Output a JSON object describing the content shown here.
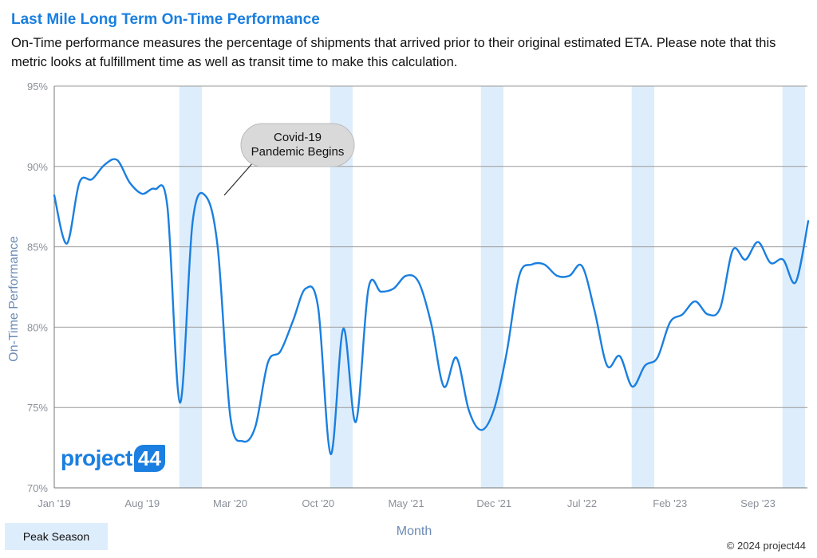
{
  "header": {
    "title": "Last Mile Long Term On-Time Performance",
    "subtitle": "On-Time performance measures the percentage of shipments that arrived prior to their original estimated ETA. Please note that this metric looks at fulfillment time as well as transit time to make this calculation."
  },
  "logo": {
    "word": "project",
    "badge": "44"
  },
  "legend": {
    "label": "Peak Season"
  },
  "copyright": "© 2024 project44",
  "annotation": {
    "line1": "Covid-19",
    "line2": "Pandemic Begins"
  },
  "colors": {
    "line": "#1a7fe0",
    "peak": "#deedfb",
    "axis_text": "#8a9099",
    "ylabel": "#6b8bb5",
    "grid": "#999999"
  },
  "chart_data": {
    "type": "line",
    "title": "Last Mile Long Term On-Time Performance",
    "xlabel": "Month",
    "ylabel": "On-Time Performance",
    "ylim": [
      70,
      95
    ],
    "y_ticks": [
      "70%",
      "75%",
      "80%",
      "85%",
      "90%",
      "95%"
    ],
    "x_ticks": [
      "Jan '19",
      "Aug '19",
      "Mar '20",
      "Oct '20",
      "May '21",
      "Dec '21",
      "Jul '22",
      "Feb '23",
      "Sep '23"
    ],
    "x_start": "Jan '19",
    "grid": true,
    "peak_season_ranges": [
      [
        "Nov '19",
        "Dec '19"
      ],
      [
        "Nov '20",
        "Dec '20"
      ],
      [
        "Nov '21",
        "Dec '21"
      ],
      [
        "Nov '22",
        "Dec '22"
      ],
      [
        "Nov '23",
        "Dec '23"
      ]
    ],
    "series": [
      {
        "values": [
          88.2,
          85.2,
          89.0,
          89.2,
          90.1,
          90.4,
          89.0,
          88.3,
          88.6,
          87.5,
          75.3,
          86.5,
          88.2,
          85.0,
          74.5,
          72.9,
          73.8,
          77.8,
          78.5,
          80.4,
          82.4,
          81.2,
          72.1,
          79.9,
          74.1,
          82.4,
          82.2,
          82.4,
          83.2,
          82.8,
          80.2,
          76.3,
          78.1,
          74.8,
          73.6,
          74.9,
          78.4,
          83.2,
          83.9,
          83.9,
          83.2,
          83.2,
          83.8,
          81.0,
          77.6,
          78.2,
          76.3,
          77.6,
          78.1,
          80.3,
          80.8,
          81.6,
          80.8,
          81.2,
          84.8,
          84.2,
          85.3,
          84.0,
          84.2,
          82.8,
          86.6
        ]
      }
    ]
  }
}
